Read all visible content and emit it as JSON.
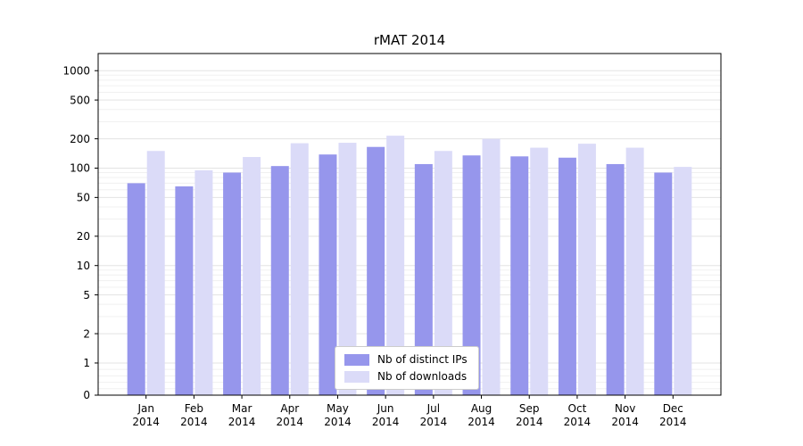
{
  "chart_data": {
    "type": "bar",
    "title": "rMAT 2014",
    "categories": [
      "Jan 2014",
      "Feb 2014",
      "Mar 2014",
      "Apr 2014",
      "May 2014",
      "Jun 2014",
      "Jul 2014",
      "Aug 2014",
      "Sep 2014",
      "Oct 2014",
      "Nov 2014",
      "Dec 2014"
    ],
    "series": [
      {
        "name": "Nb of distinct IPs",
        "color": "#9696ec",
        "values": [
          70,
          65,
          90,
          105,
          138,
          165,
          110,
          135,
          132,
          128,
          110,
          90
        ]
      },
      {
        "name": "Nb of downloads",
        "color": "#dbdbf8",
        "values": [
          150,
          95,
          130,
          180,
          182,
          215,
          150,
          200,
          162,
          178,
          162,
          103
        ]
      }
    ],
    "y_ticks": [
      0,
      1,
      2,
      5,
      10,
      20,
      50,
      100,
      200,
      500,
      1000
    ],
    "y_scale": "symlog",
    "ylim": [
      0,
      1500
    ],
    "xlabel": "",
    "ylabel": "",
    "grid": true,
    "legend_position": "lower center",
    "colors": {
      "major_grid": "#e3e3e3",
      "minor_grid": "#f0f0f0",
      "axis": "#000000"
    }
  }
}
